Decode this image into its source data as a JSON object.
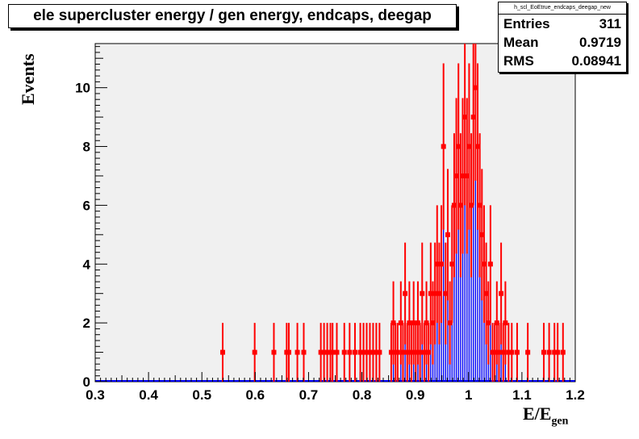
{
  "chart_data": {
    "type": "bar",
    "title": "ele supercluster energy / gen energy, endcaps, deegap",
    "xlabel_main": "E/E",
    "xlabel_sub": "gen",
    "ylabel": "Events",
    "xlim": [
      0.3,
      1.2
    ],
    "ylim": [
      0,
      11.5
    ],
    "x_ticks": [
      "0.3",
      "0.4",
      "0.5",
      "0.6",
      "0.7",
      "0.8",
      "0.9",
      "1",
      "1.1",
      "1.2"
    ],
    "y_ticks": [
      "0",
      "2",
      "4",
      "6",
      "8",
      "10"
    ],
    "grid": false,
    "colors": {
      "histogram": "#0000ff",
      "markers": "#ff0000",
      "frame_bg": "#f0f0f0"
    },
    "bin_width": 0.002,
    "bins": [
      [
        0.539,
        1
      ],
      [
        0.599,
        1
      ],
      [
        0.635,
        1
      ],
      [
        0.659,
        1
      ],
      [
        0.663,
        1
      ],
      [
        0.679,
        1
      ],
      [
        0.691,
        1
      ],
      [
        0.723,
        1
      ],
      [
        0.729,
        1
      ],
      [
        0.735,
        1
      ],
      [
        0.741,
        1
      ],
      [
        0.745,
        1
      ],
      [
        0.753,
        1
      ],
      [
        0.767,
        1
      ],
      [
        0.777,
        1
      ],
      [
        0.787,
        1
      ],
      [
        0.797,
        1
      ],
      [
        0.803,
        1
      ],
      [
        0.809,
        1
      ],
      [
        0.815,
        1
      ],
      [
        0.821,
        1
      ],
      [
        0.827,
        1
      ],
      [
        0.833,
        1
      ],
      [
        0.855,
        1
      ],
      [
        0.859,
        2
      ],
      [
        0.863,
        1
      ],
      [
        0.867,
        1
      ],
      [
        0.873,
        2
      ],
      [
        0.877,
        1
      ],
      [
        0.881,
        3
      ],
      [
        0.885,
        1
      ],
      [
        0.889,
        2
      ],
      [
        0.893,
        1
      ],
      [
        0.897,
        2
      ],
      [
        0.901,
        1
      ],
      [
        0.905,
        2
      ],
      [
        0.909,
        1
      ],
      [
        0.913,
        3
      ],
      [
        0.917,
        1
      ],
      [
        0.921,
        2
      ],
      [
        0.925,
        1
      ],
      [
        0.929,
        3
      ],
      [
        0.933,
        2
      ],
      [
        0.937,
        3
      ],
      [
        0.941,
        4
      ],
      [
        0.945,
        3
      ],
      [
        0.949,
        4
      ],
      [
        0.953,
        8
      ],
      [
        0.957,
        3
      ],
      [
        0.961,
        5
      ],
      [
        0.965,
        2
      ],
      [
        0.969,
        4
      ],
      [
        0.973,
        6
      ],
      [
        0.977,
        7
      ],
      [
        0.981,
        8
      ],
      [
        0.985,
        6
      ],
      [
        0.989,
        7
      ],
      [
        0.993,
        9
      ],
      [
        0.997,
        7
      ],
      [
        1.001,
        8
      ],
      [
        1.005,
        6
      ],
      [
        1.009,
        9
      ],
      [
        1.013,
        10
      ],
      [
        1.017,
        8
      ],
      [
        1.021,
        6
      ],
      [
        1.025,
        5
      ],
      [
        1.029,
        4
      ],
      [
        1.033,
        3
      ],
      [
        1.037,
        2
      ],
      [
        1.041,
        4
      ],
      [
        1.045,
        1
      ],
      [
        1.049,
        1
      ],
      [
        1.053,
        2
      ],
      [
        1.057,
        1
      ],
      [
        1.061,
        3
      ],
      [
        1.065,
        1
      ],
      [
        1.069,
        2
      ],
      [
        1.075,
        1
      ],
      [
        1.081,
        1
      ],
      [
        1.091,
        1
      ],
      [
        1.111,
        1
      ],
      [
        1.141,
        1
      ],
      [
        1.151,
        1
      ],
      [
        1.161,
        1
      ],
      [
        1.167,
        1
      ],
      [
        1.177,
        1
      ]
    ]
  },
  "stats": {
    "name": "h_scl_EoEtrue_endcaps_deegap_new",
    "entries_label": "Entries",
    "entries_value": "311",
    "mean_label": "Mean",
    "mean_value": "0.9719",
    "rms_label": "RMS",
    "rms_value": "0.08941"
  }
}
